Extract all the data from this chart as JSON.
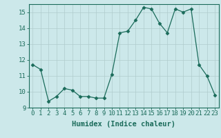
{
  "x": [
    0,
    1,
    2,
    3,
    4,
    5,
    6,
    7,
    8,
    9,
    10,
    11,
    12,
    13,
    14,
    15,
    16,
    17,
    18,
    19,
    20,
    21,
    22,
    23
  ],
  "y": [
    11.7,
    11.4,
    9.4,
    9.7,
    10.2,
    10.1,
    9.7,
    9.7,
    9.6,
    9.6,
    11.1,
    13.7,
    13.8,
    14.5,
    15.3,
    15.2,
    14.3,
    13.7,
    15.2,
    15.0,
    15.2,
    11.7,
    11.0,
    9.8
  ],
  "xlabel": "Humidex (Indice chaleur)",
  "ylim": [
    9,
    15.5
  ],
  "xlim": [
    -0.5,
    23.5
  ],
  "yticks": [
    9,
    10,
    11,
    12,
    13,
    14,
    15
  ],
  "xticks": [
    0,
    1,
    2,
    3,
    4,
    5,
    6,
    7,
    8,
    9,
    10,
    11,
    12,
    13,
    14,
    15,
    16,
    17,
    18,
    19,
    20,
    21,
    22,
    23
  ],
  "line_color": "#1a6b5a",
  "marker": "D",
  "marker_size": 2.5,
  "bg_color": "#cce8ea",
  "grid_color": "#b0cccc",
  "tick_color": "#1a6b5a",
  "spine_color": "#1a6b5a",
  "font_family": "monospace",
  "tick_fontsize": 6.5,
  "xlabel_fontsize": 7.5
}
